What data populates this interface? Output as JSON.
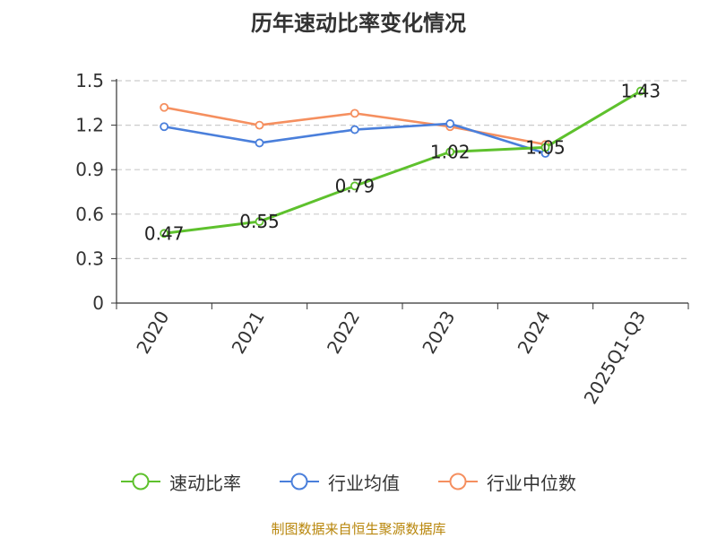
{
  "chart_data": {
    "type": "line",
    "title": "历年速动比率变化情况",
    "categories": [
      "2020",
      "2021",
      "2022",
      "2023",
      "2024",
      "2025Q1-Q3"
    ],
    "ylim": [
      0,
      1.5
    ],
    "yticks": [
      "0",
      "0.3",
      "0.6",
      "0.9",
      "1.2",
      "1.5"
    ],
    "grid": true,
    "legend_position": "bottom",
    "series": [
      {
        "name": "速动比率",
        "color": "#5ec12d",
        "values": [
          0.47,
          0.55,
          0.79,
          1.02,
          1.05,
          1.43
        ],
        "labels": [
          "0.47",
          "0.55",
          "0.79",
          "1.02",
          "1.05",
          "1.43"
        ]
      },
      {
        "name": "行业均值",
        "color": "#4a7fdb",
        "values": [
          1.19,
          1.08,
          1.17,
          1.21,
          1.01,
          null
        ]
      },
      {
        "name": "行业中位数",
        "color": "#f58f5f",
        "values": [
          1.32,
          1.2,
          1.28,
          1.19,
          1.07,
          null
        ]
      }
    ]
  },
  "source_note": "制图数据来自恒生聚源数据库"
}
